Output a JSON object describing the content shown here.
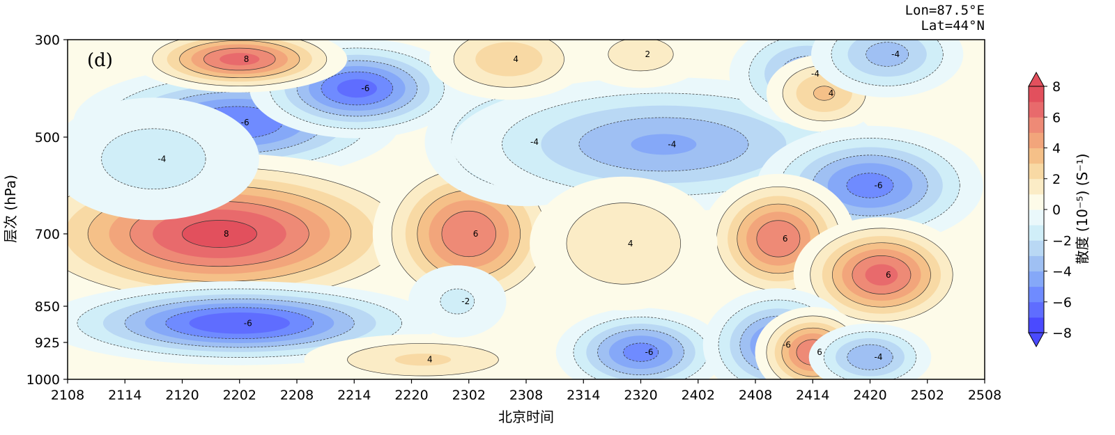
{
  "chart_data": {
    "type": "contour",
    "panel_label": "(d)",
    "annotation": [
      "Lon=87.5°E",
      "Lat=44°N"
    ],
    "xlabel": "北京时间",
    "ylabel": "层次 (hPa)",
    "x_ticks": [
      "2108",
      "2114",
      "2120",
      "2202",
      "2208",
      "2214",
      "2220",
      "2302",
      "2308",
      "2314",
      "2320",
      "2402",
      "2408",
      "2414",
      "2420",
      "2502",
      "2508"
    ],
    "y_ticks": [
      {
        "label": "300",
        "value": 300
      },
      {
        "label": "500",
        "value": 500
      },
      {
        "label": "700",
        "value": 700
      },
      {
        "label": "850",
        "value": 850
      },
      {
        "label": "925",
        "value": 925
      },
      {
        "label": "1000",
        "value": 1000
      }
    ],
    "ylim": [
      300,
      1000
    ],
    "colorbar": {
      "label": "散度 (10⁻⁵) (S⁻¹)",
      "ticks": [
        "8",
        "6",
        "4",
        "2",
        "0",
        "−2",
        "−4",
        "−6",
        "−8"
      ],
      "levels": [
        -8,
        -7,
        -6,
        -5,
        -4,
        -3,
        -2,
        -1,
        0,
        1,
        2,
        3,
        4,
        5,
        6,
        7,
        8
      ],
      "colors": [
        "#4a4aff",
        "#5f6dff",
        "#6f8bff",
        "#85a8f8",
        "#9fc0f3",
        "#b9d8f4",
        "#d0eef8",
        "#eaf8fb",
        "#fdfbe9",
        "#fbecc6",
        "#f8d9a4",
        "#f5c088",
        "#f2a57b",
        "#ee8a76",
        "#e86a6c",
        "#e2505d"
      ]
    },
    "features": [
      {
        "label": "-6",
        "sign": -1,
        "x": 2.95,
        "p": 470,
        "sx": 1.7,
        "sp": 70,
        "amp": 7.0
      },
      {
        "label": "-6",
        "sign": -1,
        "x": 5.05,
        "p": 400,
        "sx": 1.1,
        "sp": 60,
        "amp": 7.5
      },
      {
        "label": "8",
        "sign": 1,
        "x": 3.0,
        "p": 340,
        "sx": 1.1,
        "sp": 40,
        "amp": 7.5
      },
      {
        "label": "8",
        "sign": 1,
        "x": 2.65,
        "p": 700,
        "sx": 2.2,
        "sp": 95,
        "amp": 8.5
      },
      {
        "label": "-6",
        "sign": -1,
        "x": 3.0,
        "p": 885,
        "sx": 2.0,
        "sp": 50,
        "amp": 8.0
      },
      {
        "label": "-4",
        "sign": -1,
        "x": 1.5,
        "p": 545,
        "sx": 1.6,
        "sp": 110,
        "amp": 2.5
      },
      {
        "label": "6",
        "sign": 1,
        "x": 7.0,
        "p": 700,
        "sx": 1.0,
        "sp": 100,
        "amp": 7.0
      },
      {
        "label": "-4",
        "sign": -1,
        "x": 8.0,
        "p": 510,
        "sx": 1.2,
        "sp": 90,
        "amp": 4.5
      },
      {
        "label": "-4",
        "sign": -1,
        "x": 10.4,
        "p": 515,
        "sx": 2.4,
        "sp": 90,
        "amp": 5.2
      },
      {
        "label": "-4",
        "sign": -1,
        "x": 12.9,
        "p": 370,
        "sx": 0.9,
        "sp": 70,
        "amp": 4.8
      },
      {
        "label": "4",
        "sign": 1,
        "x": 13.2,
        "p": 410,
        "sx": 0.7,
        "sp": 55,
        "amp": 4.2
      },
      {
        "label": "-6",
        "sign": -1,
        "x": 14.0,
        "p": 600,
        "sx": 1.2,
        "sp": 75,
        "amp": 6.5
      },
      {
        "label": "6",
        "sign": 1,
        "x": 12.4,
        "p": 710,
        "sx": 0.8,
        "sp": 80,
        "amp": 7.0
      },
      {
        "label": "6",
        "sign": 1,
        "x": 14.2,
        "p": 785,
        "sx": 0.9,
        "sp": 70,
        "amp": 7.5
      },
      {
        "label": "-6",
        "sign": -1,
        "x": 10.0,
        "p": 945,
        "sx": 0.9,
        "sp": 80,
        "amp": 6.5
      },
      {
        "label": "-6",
        "sign": -1,
        "x": 12.4,
        "p": 930,
        "sx": 0.8,
        "sp": 75,
        "amp": 6.5
      },
      {
        "label": "6",
        "sign": 1,
        "x": 13.0,
        "p": 945,
        "sx": 0.6,
        "sp": 55,
        "amp": 7.0
      },
      {
        "label": "-4",
        "sign": -1,
        "x": 14.0,
        "p": 955,
        "sx": 0.7,
        "sp": 45,
        "amp": 5.0
      },
      {
        "label": "4",
        "sign": 1,
        "x": 6.2,
        "p": 960,
        "sx": 1.6,
        "sp": 90,
        "amp": 3.2
      },
      {
        "label": "4",
        "sign": 1,
        "x": 7.7,
        "p": 340,
        "sx": 1.0,
        "sp": 60,
        "amp": 3.8
      },
      {
        "label": "2",
        "sign": 1,
        "x": 10.0,
        "p": 330,
        "sx": 1.0,
        "sp": 60,
        "amp": 2.5
      },
      {
        "label": "4",
        "sign": 1,
        "x": 9.7,
        "p": 720,
        "sx": 1.3,
        "sp": 110,
        "amp": 3.0
      },
      {
        "label": "-4",
        "sign": -1,
        "x": 14.3,
        "p": 330,
        "sx": 0.9,
        "sp": 60,
        "amp": 4.5
      },
      {
        "label": "-2",
        "sign": -1,
        "x": 6.8,
        "p": 840,
        "sx": 0.8,
        "sp": 70,
        "amp": 2.2
      }
    ],
    "x_range": [
      0,
      16
    ],
    "grid": false
  }
}
